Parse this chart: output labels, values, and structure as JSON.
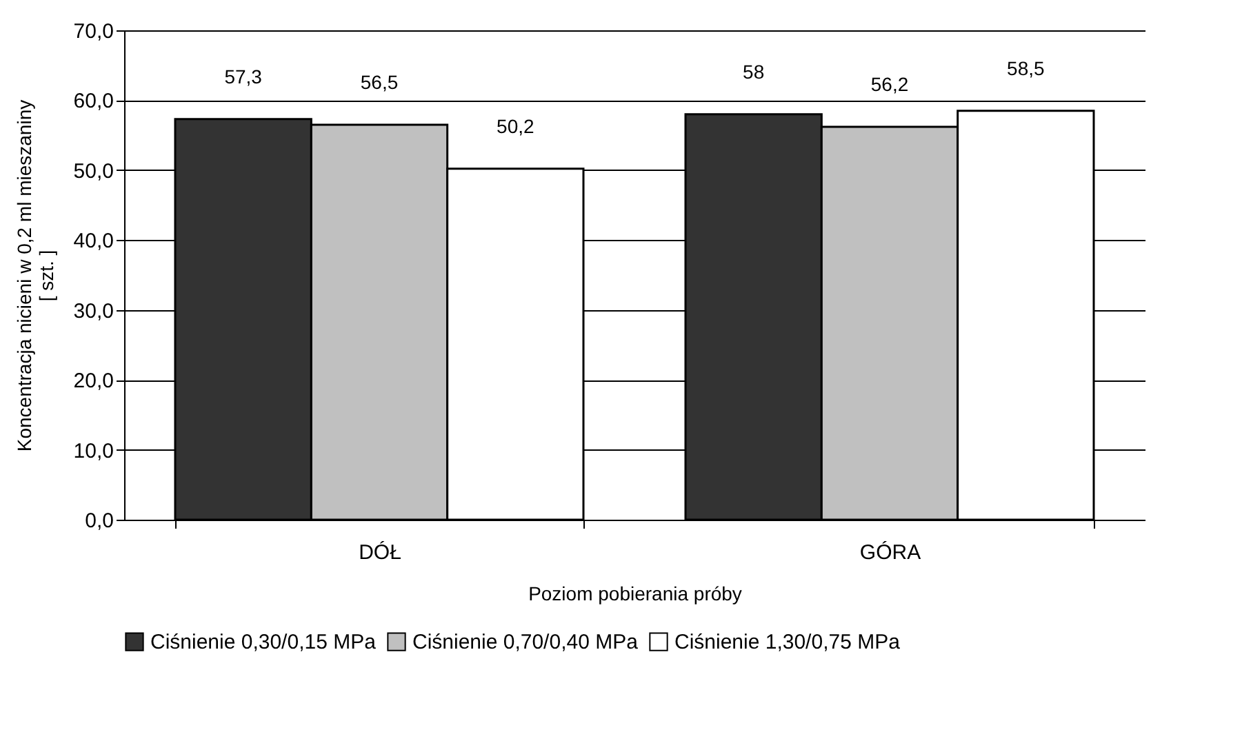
{
  "chart_data": {
    "type": "bar",
    "xlabel": "Poziom pobierania próby",
    "ylabel": "Koncentracja nicieni w 0,2 ml mieszaniny\n[ szt. ]",
    "categories": [
      "DÓŁ",
      "GÓRA"
    ],
    "series": [
      {
        "name": "Ciśnienie 0,30/0,15 MPa",
        "color": "#333333",
        "values": [
          57.3,
          58
        ],
        "value_labels": [
          "57,3",
          "58"
        ]
      },
      {
        "name": "Ciśnienie 0,70/0,40 MPa",
        "color": "#c0c0c0",
        "values": [
          56.5,
          56.2
        ],
        "value_labels": [
          "56,5",
          "56,2"
        ]
      },
      {
        "name": "Ciśnienie 1,30/0,75 MPa",
        "color": "#ffffff",
        "values": [
          50.2,
          58.5
        ],
        "value_labels": [
          "50,2",
          "58,5"
        ]
      }
    ],
    "ylim": [
      0,
      70
    ],
    "yticks": [
      {
        "value": 0,
        "label": "0,0"
      },
      {
        "value": 10,
        "label": "10,0"
      },
      {
        "value": 20,
        "label": "20,0"
      },
      {
        "value": 30,
        "label": "30,0"
      },
      {
        "value": 40,
        "label": "40,0"
      },
      {
        "value": 50,
        "label": "50,0"
      },
      {
        "value": 60,
        "label": "60,0"
      },
      {
        "value": 70,
        "label": "70,0"
      }
    ],
    "grid": "y",
    "legend": "bottom"
  }
}
